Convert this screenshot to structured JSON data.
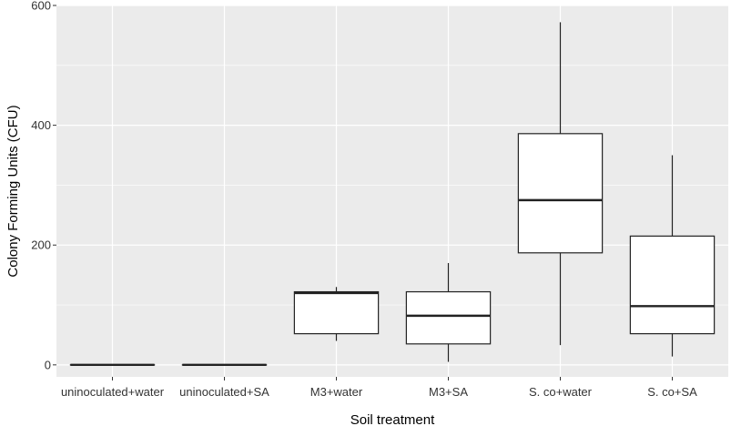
{
  "chart_data": {
    "type": "boxplot",
    "title": "",
    "xlabel": "Soil treatment",
    "ylabel": "Colony Forming Units (CFU)",
    "ylim": [
      -20,
      600
    ],
    "yticks": [
      0,
      200,
      400,
      600
    ],
    "grid": true,
    "legend": "none",
    "panel_color": "#ebebeb",
    "grid_color": "#ffffff",
    "box_fill": "#ffffff",
    "line_color": "#222222",
    "categories": [
      "uninoculated+water",
      "uninoculated+SA",
      "M3+water",
      "M3+SA",
      "S. co+water",
      "S. co+SA"
    ],
    "boxes": [
      {
        "min": 0,
        "q1": 0,
        "median": 0,
        "q3": 0,
        "max": 0
      },
      {
        "min": 0,
        "q1": 0,
        "median": 0,
        "q3": 0,
        "max": 0
      },
      {
        "min": 40,
        "q1": 52,
        "median": 120,
        "q3": 122,
        "max": 130
      },
      {
        "min": 5,
        "q1": 35,
        "median": 82,
        "q3": 122,
        "max": 170
      },
      {
        "min": 33,
        "q1": 187,
        "median": 275,
        "q3": 386,
        "max": 572
      },
      {
        "min": 14,
        "q1": 52,
        "median": 98,
        "q3": 215,
        "max": 350
      }
    ]
  }
}
